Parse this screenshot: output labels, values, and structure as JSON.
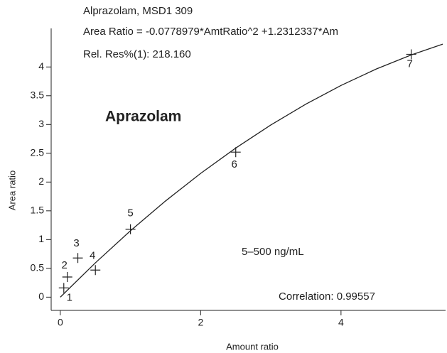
{
  "chart_data": {
    "type": "scatter",
    "title": "Alprazolam, MSD1 309",
    "equation": "Area Ratio = -0.0778979*AmtRatio^2 +1.2312337*Am",
    "residual": "Rel. Res%(1): 218.160",
    "compound": "Aprazolam",
    "range_note": "5–500 ng/mL",
    "correlation": "Correlation: 0.99557",
    "xlabel": "Amount ratio",
    "ylabel": "Area ratio",
    "x": [
      0.05,
      0.1,
      0.25,
      0.5,
      1,
      2.5,
      5
    ],
    "values": [
      0.16,
      0.35,
      0.68,
      0.47,
      1.18,
      2.52,
      4.22
    ],
    "point_labels": [
      "1",
      "2",
      "3",
      "4",
      "5",
      "6",
      "7"
    ],
    "fit": {
      "x": [
        0,
        0.5,
        1,
        1.5,
        2,
        2.5,
        3,
        3.5,
        4,
        4.5,
        5,
        5.45
      ],
      "values": [
        0,
        0.5962,
        1.1533,
        1.6716,
        2.1509,
        2.5912,
        2.9926,
        3.3551,
        3.6785,
        3.9632,
        4.2088,
        4.3964
      ]
    },
    "color": "#222222",
    "xlim": [
      -0.13,
      5.49
    ],
    "xticks": [
      0,
      2,
      4
    ],
    "ylim": [
      -0.23,
      4.67
    ],
    "yticks": [
      0,
      0.5,
      1,
      1.5,
      2,
      2.5,
      3,
      3.5,
      4
    ]
  }
}
